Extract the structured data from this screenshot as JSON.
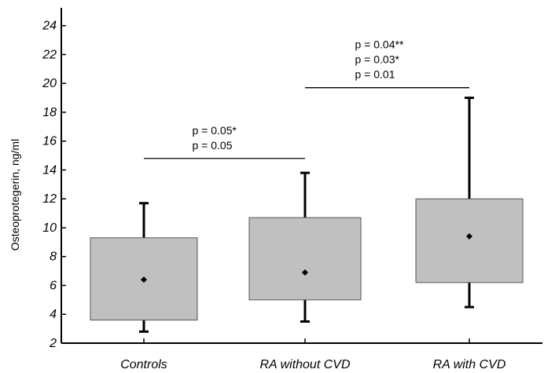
{
  "chart_data": {
    "type": "box",
    "title": "",
    "xlabel": "",
    "ylabel": "Osteoprotegerin, ng/ml",
    "ylim": [
      2,
      25
    ],
    "yticks": [
      2,
      4,
      6,
      8,
      10,
      12,
      14,
      16,
      18,
      20,
      22,
      24
    ],
    "categories": [
      "Controls",
      "RA without CVD",
      "RA with CVD"
    ],
    "boxes": [
      {
        "category": "Controls",
        "whisker_low": 2.8,
        "q1": 3.6,
        "median": 6.4,
        "q3": 9.3,
        "whisker_high": 11.7
      },
      {
        "category": "RA without CVD",
        "whisker_low": 3.5,
        "q1": 5.0,
        "median": 6.9,
        "q3": 10.7,
        "whisker_high": 13.8
      },
      {
        "category": "RA with CVD",
        "whisker_low": 4.5,
        "q1": 6.2,
        "median": 9.4,
        "q3": 12.0,
        "whisker_high": 19.0
      }
    ],
    "comparisons": [
      {
        "from": "Controls",
        "to": "RA without CVD",
        "level": 14.8,
        "lines": [
          "p = 0.05*",
          "p = 0.05"
        ]
      },
      {
        "from": "RA without CVD",
        "to": "RA with CVD",
        "level": 19.7,
        "lines": [
          "p = 0.04**",
          "p = 0.03*",
          "p = 0.01"
        ]
      }
    ],
    "grid": false,
    "colors": {
      "box_fill": "#c0c0c0",
      "box_stroke": "#555555",
      "axis": "#000000"
    }
  }
}
